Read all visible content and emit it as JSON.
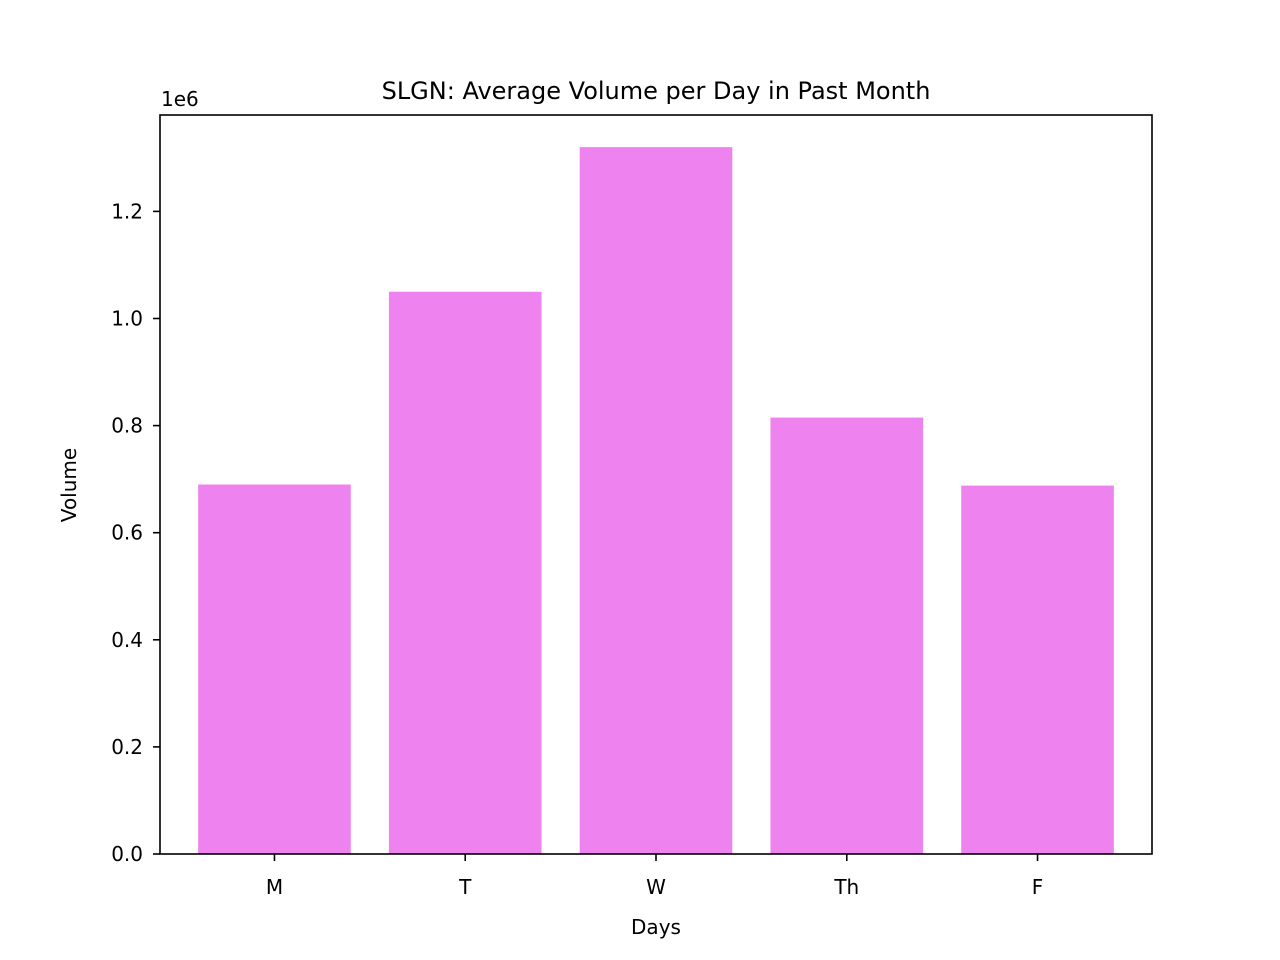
{
  "chart_data": {
    "type": "bar",
    "title": "SLGN: Average Volume per Day in Past Month",
    "xlabel": "Days",
    "ylabel": "Volume",
    "y_scale_label": "1e6",
    "categories": [
      "M",
      "T",
      "W",
      "Th",
      "F"
    ],
    "values": [
      690000,
      1050000,
      1320000,
      815000,
      688000
    ],
    "ylim": [
      0,
      1380000
    ],
    "yticks": [
      0,
      200000,
      400000,
      600000,
      800000,
      1000000,
      1200000
    ],
    "ytick_labels": [
      "0.0",
      "0.2",
      "0.4",
      "0.6",
      "0.8",
      "1.0",
      "1.2"
    ],
    "bar_color": "#ee82ee",
    "grid": false,
    "legend": false
  }
}
